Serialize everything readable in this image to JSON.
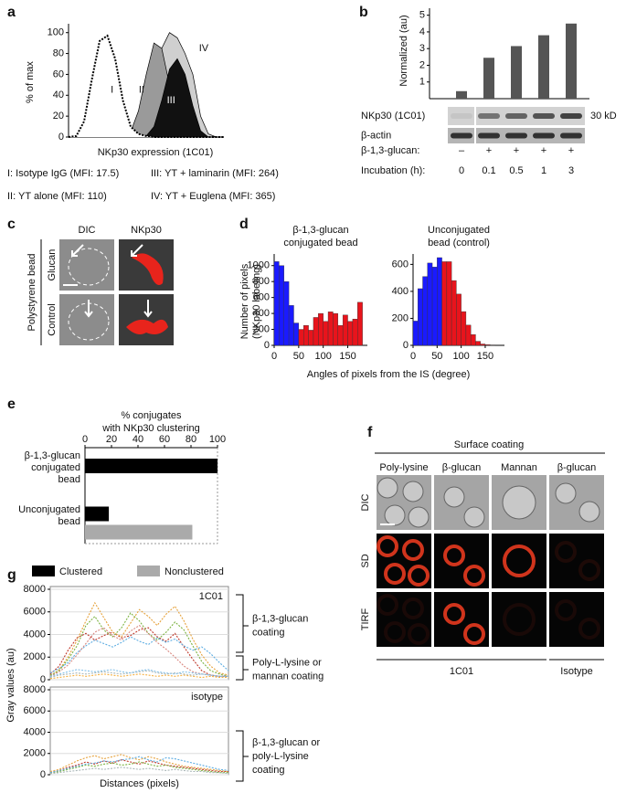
{
  "panel_labels": [
    "a",
    "b",
    "c",
    "d",
    "e",
    "f",
    "g"
  ],
  "chart_data": [
    {
      "type": "area",
      "ylabel": "% of max",
      "xlabel": "NKp30 expression (1C01)",
      "x": [
        0,
        5,
        10,
        15,
        20,
        25,
        30,
        35,
        40,
        45,
        50,
        55,
        60,
        65,
        70,
        75,
        80,
        85,
        90,
        95,
        100
      ],
      "xlim": [
        0,
        100
      ],
      "ylim": [
        0,
        105
      ],
      "yticks": [
        0,
        20,
        40,
        60,
        80,
        100
      ],
      "series": [
        {
          "name": "I",
          "label": "I: Isotype IgG (MFI: 17.5)",
          "color": "#ffffff",
          "line_style": "dotted",
          "values": [
            0,
            1,
            15,
            55,
            92,
            97,
            75,
            35,
            10,
            3,
            1,
            0,
            0,
            0,
            0,
            0,
            0,
            0,
            0,
            0,
            0
          ]
        },
        {
          "name": "II",
          "label": "II: YT alone (MFI: 110)",
          "color": "#9a9a9a",
          "values": [
            0,
            0,
            0,
            0,
            0,
            0,
            0,
            1,
            5,
            25,
            60,
            90,
            85,
            50,
            20,
            6,
            1,
            0,
            0,
            0,
            0
          ]
        },
        {
          "name": "III",
          "label": "III: YT + laminarin (MFI: 264)",
          "color": "#111111",
          "values": [
            0,
            0,
            0,
            0,
            0,
            0,
            0,
            0,
            0,
            0,
            1,
            10,
            35,
            65,
            75,
            60,
            30,
            6,
            0,
            0,
            0
          ]
        },
        {
          "name": "IV",
          "label": "IV: YT + Euglena (MFI: 365)",
          "color": "#cfcfcf",
          "values": [
            0,
            0,
            0,
            0,
            0,
            0,
            0,
            0,
            1,
            5,
            20,
            50,
            85,
            100,
            95,
            80,
            60,
            20,
            3,
            0,
            0
          ]
        }
      ]
    },
    {
      "type": "bar",
      "ylabel": "Normalized (au)",
      "category_label": "Incubation (h):",
      "categories": [
        "0",
        "0.1",
        "0.5",
        "1",
        "3"
      ],
      "values": [
        0.45,
        2.45,
        3.15,
        3.8,
        4.5
      ],
      "color": "#555555",
      "ylim": [
        0,
        5.2
      ],
      "yticks": [
        1,
        2,
        3,
        4,
        5
      ],
      "blots": [
        {
          "label": "NKp30 (1C01)",
          "size": "30 kD"
        },
        {
          "label": "β-actin"
        }
      ],
      "treatment": {
        "label": "β-1,3-glucan:",
        "values": [
          "–",
          "+",
          "+",
          "+",
          "+"
        ]
      }
    },
    {
      "type": "histogram",
      "title": [
        "β-1,3-glucan",
        "conjugated bead"
      ],
      "ylabel": [
        "Number of pixels",
        "(NKp30 labeling)"
      ],
      "xlabel": "Angles of pixels from the IS (degree)",
      "bins": [
        0,
        10,
        20,
        30,
        40,
        50,
        60,
        70,
        80,
        90,
        100,
        110,
        120,
        130,
        140,
        150,
        160,
        170,
        180
      ],
      "counts": [
        1050,
        1000,
        800,
        500,
        280,
        200,
        250,
        190,
        350,
        400,
        300,
        420,
        400,
        250,
        380,
        300,
        330,
        540
      ],
      "colors": [
        "#1a1aff",
        "#1a1aff",
        "#1a1aff",
        "#1a1aff",
        "#1a1aff",
        "#e8141c",
        "#e8141c",
        "#e8141c",
        "#e8141c",
        "#e8141c",
        "#e8141c",
        "#e8141c",
        "#e8141c",
        "#e8141c",
        "#e8141c",
        "#e8141c",
        "#e8141c",
        "#e8141c"
      ],
      "xlim": [
        0,
        190
      ],
      "xticks": [
        0,
        50,
        100,
        150
      ],
      "ylim": [
        0,
        1100
      ],
      "yticks": [
        0,
        200,
        400,
        600,
        800,
        1000
      ]
    },
    {
      "type": "histogram",
      "title": [
        "Unconjugated",
        "bead (control)"
      ],
      "bins": [
        0,
        10,
        20,
        30,
        40,
        50,
        60,
        70,
        80,
        90,
        100,
        110,
        120,
        130,
        140,
        150,
        160,
        170,
        180
      ],
      "counts": [
        180,
        420,
        510,
        610,
        580,
        650,
        620,
        620,
        480,
        380,
        250,
        150,
        80,
        30,
        10,
        5,
        3,
        0
      ],
      "colors": [
        "#1a1aff",
        "#1a1aff",
        "#1a1aff",
        "#1a1aff",
        "#1a1aff",
        "#1a1aff",
        "#e8141c",
        "#e8141c",
        "#e8141c",
        "#e8141c",
        "#e8141c",
        "#e8141c",
        "#e8141c",
        "#e8141c",
        "#e8141c",
        "#e8141c",
        "#e8141c",
        "#e8141c"
      ],
      "xlim": [
        0,
        190
      ],
      "xticks": [
        0,
        50,
        100,
        150
      ],
      "ylim": [
        0,
        650
      ],
      "yticks": [
        0,
        200,
        400,
        600
      ]
    },
    {
      "type": "bar",
      "orientation": "horizontal",
      "title": [
        "% conjugates",
        "with NKp30 clustering"
      ],
      "categories": [
        [
          "β-1,3-glucan",
          "conjugated",
          "bead"
        ],
        [
          "Unconjugated",
          "bead"
        ]
      ],
      "xlim": [
        0,
        100
      ],
      "xticks": [
        0,
        20,
        40,
        60,
        80,
        100
      ],
      "series": [
        {
          "name": "Clustered",
          "color": "#000000",
          "values": [
            100,
            18
          ]
        },
        {
          "name": "Nonclustered",
          "color": "#aaaaaa",
          "values": [
            0,
            81
          ]
        }
      ]
    },
    {
      "type": "line",
      "annotation": "1C01",
      "grid": true,
      "x": [
        0,
        1,
        2,
        3,
        4,
        5,
        6,
        7,
        8,
        9,
        10,
        11,
        12,
        13,
        14,
        15,
        16,
        17,
        18,
        19,
        20
      ],
      "xlim": [
        0,
        20
      ],
      "ylim": [
        0,
        8000
      ],
      "yticks": [
        0,
        2000,
        4000,
        6000,
        8000
      ],
      "series": [
        {
          "color": "#c0392b",
          "values": [
            500,
            1200,
            2600,
            3700,
            4100,
            3500,
            3900,
            4200,
            3700,
            3900,
            4400,
            4600,
            3800,
            3400,
            4100,
            2900,
            1800,
            800,
            400,
            300,
            300
          ]
        },
        {
          "color": "#e6a23c",
          "values": [
            300,
            900,
            2000,
            3500,
            5200,
            6800,
            5500,
            4200,
            3800,
            5000,
            6200,
            5600,
            4800,
            5800,
            6500,
            5200,
            3600,
            2200,
            1200,
            600,
            400
          ]
        },
        {
          "color": "#7cb342",
          "values": [
            400,
            800,
            1800,
            3000,
            4800,
            5600,
            4400,
            3800,
            4600,
            5900,
            5200,
            4100,
            3500,
            4200,
            5100,
            4400,
            3000,
            1600,
            800,
            500,
            300
          ]
        },
        {
          "color": "#5dade2",
          "values": [
            600,
            1000,
            1500,
            2400,
            3000,
            3500,
            3200,
            2900,
            3300,
            3800,
            3400,
            3100,
            3700,
            3300,
            3600,
            3000,
            2600,
            2900,
            2300,
            1500,
            800
          ]
        },
        {
          "color": "#d98880",
          "values": [
            300,
            700,
            1300,
            2200,
            3200,
            4200,
            4600,
            3900,
            3500,
            4300,
            4800,
            4100,
            3300,
            2700,
            2000,
            1200,
            700,
            500,
            400,
            300,
            300
          ]
        },
        {
          "color": "#aab7b8",
          "values": [
            200,
            400,
            500,
            600,
            500,
            600,
            700,
            600,
            500,
            600,
            700,
            800,
            600,
            500,
            600,
            500,
            400,
            500,
            400,
            300,
            300
          ]
        },
        {
          "color": "#f5b041",
          "values": [
            100,
            200,
            300,
            400,
            300,
            400,
            500,
            400,
            300,
            400,
            500,
            400,
            300,
            400,
            300,
            400,
            300,
            200,
            300,
            200,
            200
          ]
        },
        {
          "color": "#85c1e9",
          "values": [
            300,
            500,
            700,
            900,
            800,
            700,
            800,
            900,
            700,
            600,
            800,
            900,
            700,
            600,
            500,
            700,
            600,
            500,
            400,
            300,
            300
          ]
        }
      ]
    },
    {
      "type": "line",
      "annotation": "isotype",
      "grid": true,
      "ylabel": "Gray values (au)",
      "xlabel": "Distances (pixels)",
      "x": [
        0,
        1,
        2,
        3,
        4,
        5,
        6,
        7,
        8,
        9,
        10,
        11,
        12,
        13,
        14,
        15,
        16,
        17,
        18,
        19,
        20
      ],
      "xlim": [
        0,
        20
      ],
      "ylim": [
        0,
        8000
      ],
      "yticks": [
        0,
        2000,
        4000,
        6000,
        8000
      ],
      "series": [
        {
          "color": "#c0392b",
          "values": [
            200,
            400,
            700,
            900,
            1200,
            1000,
            1300,
            1100,
            1400,
            1200,
            1000,
            1300,
            1100,
            900,
            800,
            700,
            600,
            500,
            400,
            300,
            300
          ]
        },
        {
          "color": "#e6a23c",
          "values": [
            300,
            500,
            900,
            1300,
            1600,
            1800,
            1500,
            1700,
            1900,
            1600,
            1400,
            1700,
            1500,
            1200,
            1000,
            800,
            700,
            600,
            500,
            400,
            300
          ]
        },
        {
          "color": "#5dade2",
          "values": [
            200,
            400,
            600,
            800,
            1000,
            1100,
            1300,
            1200,
            1400,
            1500,
            1700,
            1400,
            1200,
            1600,
            1500,
            1300,
            1100,
            900,
            700,
            500,
            400
          ]
        },
        {
          "color": "#7cb342",
          "values": [
            100,
            300,
            500,
            700,
            900,
            800,
            1000,
            1100,
            900,
            1000,
            1200,
            1000,
            800,
            900,
            700,
            600,
            500,
            400,
            300,
            200,
            200
          ]
        },
        {
          "color": "#aab7b8",
          "values": [
            100,
            200,
            300,
            400,
            500,
            600,
            500,
            600,
            700,
            600,
            500,
            600,
            500,
            400,
            500,
            400,
            300,
            300,
            200,
            200,
            100
          ]
        }
      ]
    }
  ],
  "panel_c": {
    "columns": [
      "DIC",
      "NKp30"
    ],
    "rows": [
      "Glucan",
      "Control"
    ],
    "group": "Polystyrene bead"
  },
  "panel_f": {
    "header": "Surface coating",
    "columns": [
      "Poly-lysine",
      "β-glucan",
      "Mannan",
      "β-glucan"
    ],
    "rows": [
      "DIC",
      "SD",
      "TIRF"
    ],
    "footer": [
      "1C01",
      "Isotype"
    ]
  },
  "panel_g_brackets": [
    [
      "β-1,3-glucan",
      "coating"
    ],
    [
      "Poly-L-lysine or",
      "mannan coating"
    ],
    [
      "β-1,3-glucan or",
      "poly-L-lysine",
      "coating"
    ]
  ]
}
